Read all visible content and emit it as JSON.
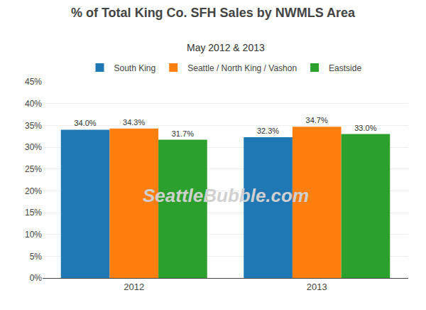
{
  "chart_data": {
    "type": "bar",
    "title": "% of Total King Co. SFH Sales by NWMLS Area",
    "subtitle": "May 2012 & 2013",
    "annotations": [
      "SeattleBubble.com"
    ],
    "categories": [
      "2012",
      "2013"
    ],
    "series": [
      {
        "name": "South King",
        "values": [
          0.34,
          0.323
        ],
        "value_labels": [
          "34.0%",
          "32.3%"
        ]
      },
      {
        "name": "Seattle / North King / Vashon",
        "values": [
          0.343,
          0.347
        ],
        "value_labels": [
          "34.3%",
          "34.7%"
        ]
      },
      {
        "name": "Eastside",
        "values": [
          0.317,
          0.33
        ],
        "value_labels": [
          "31.7%",
          "33.0%"
        ]
      }
    ],
    "ylim": [
      0,
      0.45
    ],
    "yticks": [
      {
        "value": 0,
        "label": "0%"
      },
      {
        "value": 0.05,
        "label": "5%"
      },
      {
        "value": 0.1,
        "label": "10%"
      },
      {
        "value": 0.15,
        "label": "15%"
      },
      {
        "value": 0.2,
        "label": "20%"
      },
      {
        "value": 0.25,
        "label": "25%"
      },
      {
        "value": 0.3,
        "label": "30%"
      },
      {
        "value": 0.35,
        "label": "35%"
      },
      {
        "value": 0.4,
        "label": "40%"
      },
      {
        "value": 0.45,
        "label": "45%"
      }
    ],
    "grid": true,
    "legend": "top",
    "data_labels": true
  }
}
